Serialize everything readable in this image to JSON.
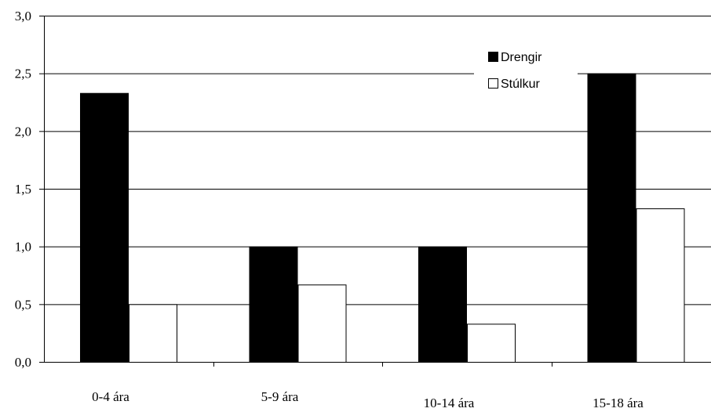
{
  "chart_data": {
    "type": "bar",
    "categories": [
      "0-4 ára",
      "5-9 ára",
      "10-14 ára",
      "15-18 ára"
    ],
    "series": [
      {
        "name": "Drengir",
        "values": [
          2.33,
          1.0,
          1.0,
          2.5
        ],
        "color": "#000000"
      },
      {
        "name": "Stúlkur",
        "values": [
          0.5,
          0.67,
          0.33,
          1.33
        ],
        "color": "#ffffff"
      }
    ],
    "ylim": [
      0,
      3
    ],
    "y_ticks": [
      "0,0",
      "0,5",
      "1,0",
      "1,5",
      "2,0",
      "2,5",
      "3,0"
    ],
    "grid": true,
    "legend_position": "top-right"
  }
}
